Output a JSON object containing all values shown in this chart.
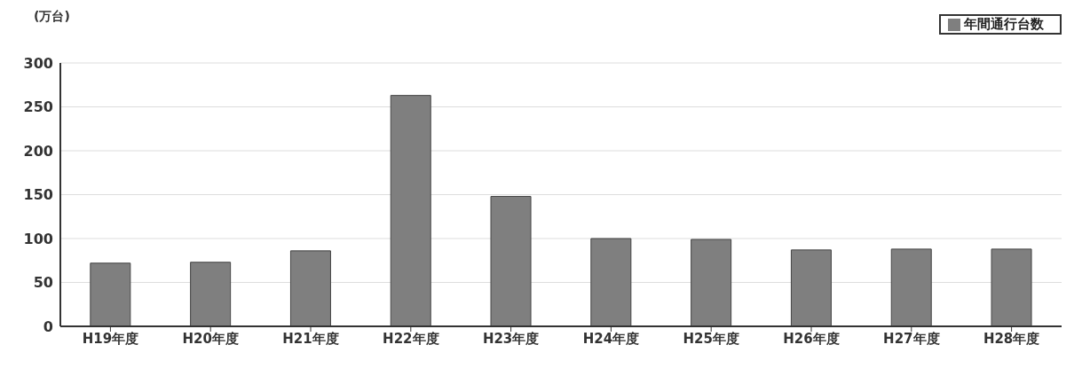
{
  "chart_data": {
    "type": "bar",
    "ylabel": "(万台)",
    "categories": [
      "H19年度",
      "H20年度",
      "H21年度",
      "H22年度",
      "H23年度",
      "H24年度",
      "H25年度",
      "H26年度",
      "H27年度",
      "H28年度"
    ],
    "series": [
      {
        "name": "年間通行台数",
        "color": "#7f7f7f",
        "values": [
          72,
          73,
          86,
          263,
          148,
          100,
          99,
          87,
          88,
          88
        ]
      }
    ],
    "ylim": [
      0,
      300
    ],
    "yticks": [
      0,
      50,
      100,
      150,
      200,
      250,
      300
    ],
    "grid": "y",
    "legend": "top right"
  }
}
